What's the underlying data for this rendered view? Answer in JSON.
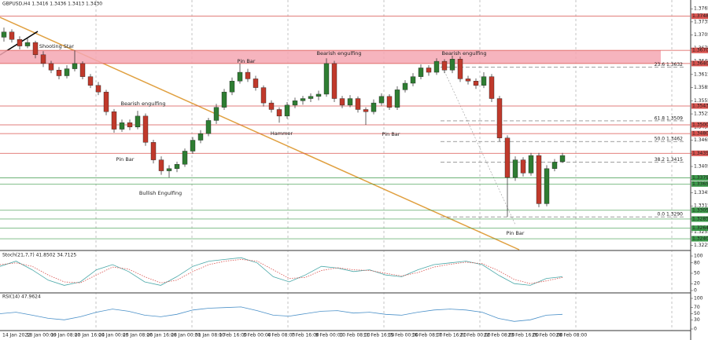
{
  "chart_data": {
    "type": "candlestick",
    "title": "GBPUSD,H4  1.3416 1.3436 1.3413 1.3430",
    "up_color": "#2e7d32",
    "down_color": "#c0392b",
    "ohlc": [
      [
        1.37,
        1.3722,
        1.369,
        1.3712
      ],
      [
        1.3712,
        1.3718,
        1.3688,
        1.3695
      ],
      [
        1.3695,
        1.3702,
        1.3672,
        1.368
      ],
      [
        1.368,
        1.3698,
        1.3675,
        1.3688
      ],
      [
        1.3688,
        1.3692,
        1.3652,
        1.366
      ],
      [
        1.366,
        1.3668,
        1.3632,
        1.364
      ],
      [
        1.364,
        1.3646,
        1.3618,
        1.3625
      ],
      [
        1.3625,
        1.3632,
        1.3604,
        1.3612
      ],
      [
        1.3612,
        1.3636,
        1.3606,
        1.3628
      ],
      [
        1.3628,
        1.367,
        1.3622,
        1.364
      ],
      [
        1.364,
        1.3645,
        1.3604,
        1.361
      ],
      [
        1.361,
        1.3616,
        1.3584,
        1.359
      ],
      [
        1.359,
        1.3598,
        1.3568,
        1.3575
      ],
      [
        1.3575,
        1.358,
        1.3522,
        1.353
      ],
      [
        1.353,
        1.3536,
        1.3482,
        1.349
      ],
      [
        1.349,
        1.3512,
        1.3484,
        1.3505
      ],
      [
        1.3505,
        1.3512,
        1.3488,
        1.3495
      ],
      [
        1.3495,
        1.3532,
        1.349,
        1.352
      ],
      [
        1.352,
        1.3526,
        1.3452,
        1.346
      ],
      [
        1.346,
        1.3466,
        1.3412,
        1.342
      ],
      [
        1.342,
        1.3428,
        1.3386,
        1.3395
      ],
      [
        1.3395,
        1.3408,
        1.338,
        1.34
      ],
      [
        1.34,
        1.3416,
        1.3392,
        1.341
      ],
      [
        1.341,
        1.3446,
        1.3404,
        1.344
      ],
      [
        1.344,
        1.3472,
        1.3434,
        1.3465
      ],
      [
        1.3465,
        1.3488,
        1.3458,
        1.348
      ],
      [
        1.348,
        1.3516,
        1.3474,
        1.351
      ],
      [
        1.351,
        1.3548,
        1.3502,
        1.354
      ],
      [
        1.354,
        1.3582,
        1.3534,
        1.3575
      ],
      [
        1.3575,
        1.3608,
        1.3568,
        1.36
      ],
      [
        1.36,
        1.364,
        1.3594,
        1.362
      ],
      [
        1.362,
        1.3628,
        1.3598,
        1.3605
      ],
      [
        1.3605,
        1.3612,
        1.3578,
        1.3585
      ],
      [
        1.3585,
        1.359,
        1.3542,
        1.355
      ],
      [
        1.355,
        1.3556,
        1.3528,
        1.3535
      ],
      [
        1.3535,
        1.354,
        1.3505,
        1.352
      ],
      [
        1.352,
        1.3552,
        1.3514,
        1.3545
      ],
      [
        1.3545,
        1.3562,
        1.3538,
        1.3555
      ],
      [
        1.3555,
        1.3566,
        1.3546,
        1.356
      ],
      [
        1.356,
        1.3572,
        1.3552,
        1.3565
      ],
      [
        1.3565,
        1.3578,
        1.3556,
        1.357
      ],
      [
        1.357,
        1.3652,
        1.3564,
        1.364
      ],
      [
        1.364,
        1.3646,
        1.3552,
        1.356
      ],
      [
        1.356,
        1.3566,
        1.3538,
        1.3545
      ],
      [
        1.3545,
        1.3568,
        1.354,
        1.356
      ],
      [
        1.356,
        1.3565,
        1.3528,
        1.3535
      ],
      [
        1.3535,
        1.354,
        1.35,
        1.353
      ],
      [
        1.353,
        1.3558,
        1.3524,
        1.355
      ],
      [
        1.355,
        1.3572,
        1.3544,
        1.3565
      ],
      [
        1.3565,
        1.357,
        1.3534,
        1.354
      ],
      [
        1.354,
        1.3588,
        1.3534,
        1.358
      ],
      [
        1.358,
        1.3602,
        1.3574,
        1.3595
      ],
      [
        1.3595,
        1.3618,
        1.3588,
        1.361
      ],
      [
        1.361,
        1.3638,
        1.3604,
        1.363
      ],
      [
        1.363,
        1.3636,
        1.3612,
        1.362
      ],
      [
        1.362,
        1.3652,
        1.3614,
        1.3645
      ],
      [
        1.3645,
        1.365,
        1.3618,
        1.3625
      ],
      [
        1.3625,
        1.3658,
        1.3618,
        1.365
      ],
      [
        1.365,
        1.3656,
        1.3598,
        1.3605
      ],
      [
        1.3605,
        1.3612,
        1.3592,
        1.36
      ],
      [
        1.36,
        1.3606,
        1.3582,
        1.359
      ],
      [
        1.359,
        1.362,
        1.3584,
        1.361
      ],
      [
        1.361,
        1.3616,
        1.3552,
        1.356
      ],
      [
        1.356,
        1.3566,
        1.3462,
        1.347
      ],
      [
        1.347,
        1.3476,
        1.329,
        1.338
      ],
      [
        1.338,
        1.3428,
        1.3372,
        1.342
      ],
      [
        1.342,
        1.3426,
        1.3382,
        1.339
      ],
      [
        1.339,
        1.3436,
        1.3384,
        1.343
      ],
      [
        1.343,
        1.3436,
        1.3312,
        1.332
      ],
      [
        1.332,
        1.3408,
        1.3314,
        1.34
      ],
      [
        1.34,
        1.3422,
        1.3394,
        1.3415
      ],
      [
        1.3416,
        1.3436,
        1.3413,
        1.343
      ]
    ],
    "ylim": [
      1.3215,
      1.3785
    ],
    "yticks": [
      {
        "value": 1.3225,
        "label": "1.3225"
      },
      {
        "value": 1.3255,
        "label": "1.3255"
      },
      {
        "value": 1.3285,
        "label": "1.3285"
      },
      {
        "value": 1.3315,
        "label": "1.3315"
      },
      {
        "value": 1.3345,
        "label": "1.3345"
      },
      {
        "value": 1.3375,
        "label": "1.3375"
      },
      {
        "value": 1.3405,
        "label": "1.3405"
      },
      {
        "value": 1.3435,
        "label": "1.3435"
      },
      {
        "value": 1.3465,
        "label": "1.3465"
      },
      {
        "value": 1.3495,
        "label": "1.3495"
      },
      {
        "value": 1.3525,
        "label": "1.3525"
      },
      {
        "value": 1.3555,
        "label": "1.3555"
      },
      {
        "value": 1.3585,
        "label": "1.3585"
      },
      {
        "value": 1.3615,
        "label": "1.3615"
      },
      {
        "value": 1.3645,
        "label": "1.3645"
      },
      {
        "value": 1.3675,
        "label": "1.3675"
      },
      {
        "value": 1.3705,
        "label": "1.3705"
      },
      {
        "value": 1.3735,
        "label": "1.3735"
      },
      {
        "value": 1.3765,
        "label": "1.3765"
      }
    ],
    "zone": [
      1.364,
      1.367
    ],
    "levels": [
      {
        "value": 1.3748,
        "label": "1.3748",
        "color": "#d9534f"
      },
      {
        "value": 1.367,
        "label": "1.3670",
        "color": "#d9534f"
      },
      {
        "value": 1.364,
        "label": "1.3640",
        "color": "#d9534f"
      },
      {
        "value": 1.3543,
        "label": "1.3543",
        "color": "#d9534f"
      },
      {
        "value": 1.35,
        "label": "1.3500",
        "color": "#d9534f"
      },
      {
        "value": 1.348,
        "label": "1.3480",
        "color": "#d9534f"
      },
      {
        "value": 1.3435,
        "label": "1.3435",
        "color": "#d9534f"
      },
      {
        "value": 1.3379,
        "label": "1.3379",
        "color": "#3c9a4a"
      },
      {
        "value": 1.3365,
        "label": "1.3365",
        "color": "#3c9a4a"
      },
      {
        "value": 1.3305,
        "label": "1.3305",
        "color": "#3c9a4a"
      },
      {
        "value": 1.3285,
        "label": "1.3285",
        "color": "#3c9a4a"
      },
      {
        "value": 1.3264,
        "label": "1.3264",
        "color": "#3c9a4a"
      },
      {
        "value": 1.324,
        "label": "1.3240",
        "color": "#3c9a4a"
      }
    ],
    "fib": [
      {
        "text": "23.6 1.3632",
        "value": 1.3632
      },
      {
        "text": "61.8 1.3509",
        "value": 1.3509
      },
      {
        "text": "50.0 1.3462",
        "value": 1.3462
      },
      {
        "text": "38.2 1.3415",
        "value": 1.3415
      },
      {
        "text": "0.0 1.3290",
        "value": 1.329
      }
    ],
    "annotations": [
      "Shooting Star",
      "Pin Bar",
      "Bearish engulfing",
      "Bearish engulfing",
      "Bearish engulfing",
      "Pin Bar",
      "Hammer",
      "Pin Bar",
      "Bullish Engulfing",
      "Pin Bar"
    ],
    "x_labels": [
      "14 Jan 2022",
      "18 Jan 00:00",
      "19 Jan 08:00",
      "20 Jan 16:00",
      "24 Jan 00:00",
      "25 Jan 08:00",
      "26 Jan 16:00",
      "28 Jan 00:00",
      "31 Jan 08:00",
      "1 Feb 16:00",
      "3 Feb 00:00",
      "4 Feb 08:00",
      "7 Feb 16:00",
      "9 Feb 00:00",
      "10 Feb 08:00",
      "11 Feb 16:00",
      "15 Feb 00:00",
      "16 Feb 08:00",
      "17 Feb 16:00",
      "21 Feb 00:00",
      "22 Feb 08:00",
      "23 Feb 16:00",
      "25 Feb 00:00",
      "28 Feb 08:00"
    ],
    "stoch": {
      "title": "Stoch(21,7,7) 41.8502 34.7125",
      "ylim": [
        0,
        100
      ],
      "yticks": [
        0,
        20,
        50,
        80,
        100
      ],
      "main": [
        70,
        85,
        60,
        30,
        15,
        25,
        60,
        75,
        55,
        25,
        15,
        40,
        70,
        85,
        90,
        95,
        80,
        40,
        25,
        45,
        70,
        65,
        55,
        60,
        45,
        40,
        60,
        75,
        80,
        85,
        75,
        45,
        20,
        15,
        35,
        40
      ],
      "signal": [
        75,
        80,
        70,
        45,
        25,
        22,
        45,
        68,
        62,
        40,
        22,
        30,
        55,
        75,
        85,
        90,
        85,
        60,
        35,
        38,
        58,
        66,
        60,
        58,
        50,
        42,
        52,
        68,
        76,
        82,
        78,
        58,
        32,
        20,
        28,
        38
      ],
      "main_color": "#4aa8a8",
      "signal_color": "#d9534f"
    },
    "rsi": {
      "title": "RSI(14) 47.9624",
      "ylim": [
        0,
        100
      ],
      "yticks": [
        0,
        30,
        50,
        70,
        100
      ],
      "values": [
        50,
        55,
        45,
        35,
        30,
        40,
        55,
        65,
        58,
        45,
        40,
        48,
        62,
        68,
        70,
        72,
        60,
        45,
        42,
        50,
        58,
        60,
        52,
        55,
        48,
        45,
        55,
        62,
        65,
        62,
        55,
        35,
        25,
        30,
        45,
        48
      ],
      "color": "#4a90c8"
    }
  }
}
